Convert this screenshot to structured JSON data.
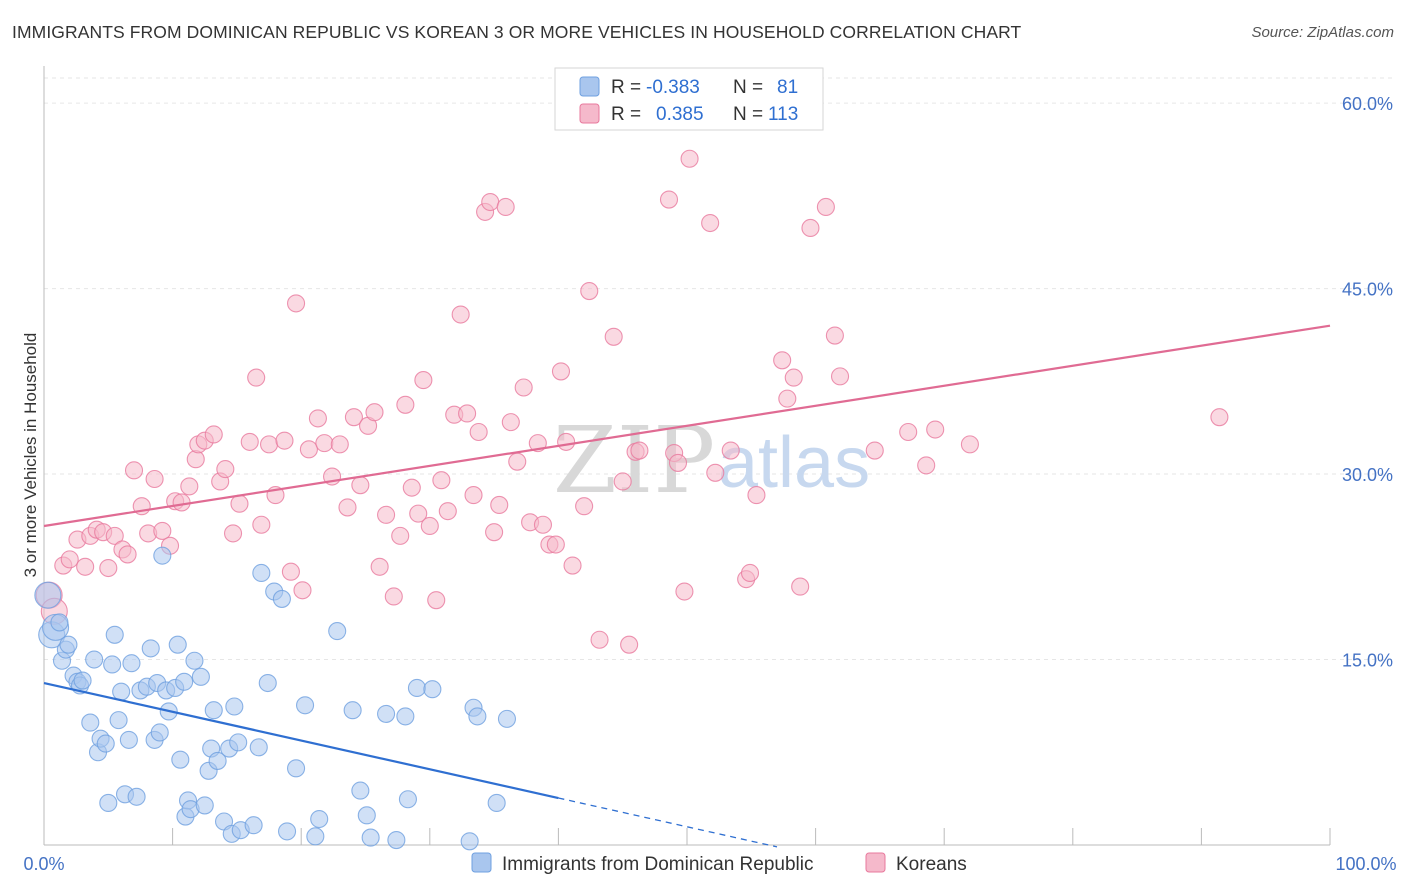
{
  "title": "IMMIGRANTS FROM DOMINICAN REPUBLIC VS KOREAN 3 OR MORE VEHICLES IN HOUSEHOLD CORRELATION CHART",
  "source": "Source: ZipAtlas.com",
  "watermark": {
    "zip": "ZIP",
    "atlas": "atlas"
  },
  "legend": {
    "rows": [
      {
        "r_label": "R =",
        "r_value": "-0.383",
        "n_label": "N =",
        "n_value": "81",
        "color": "#a9c6ee"
      },
      {
        "r_label": "R =",
        "r_value": "0.385",
        "n_label": "N =",
        "n_value": "113",
        "color": "#f5b9cb"
      }
    ]
  },
  "bottom_legend": [
    {
      "label": "Immigrants from Dominican Republic",
      "color": "#a9c6ee"
    },
    {
      "label": "Koreans",
      "color": "#f5b9cb"
    }
  ],
  "chart_data": {
    "type": "scatter",
    "title": "IMMIGRANTS FROM DOMINICAN REPUBLIC VS KOREAN 3 OR MORE VEHICLES IN HOUSEHOLD CORRELATION CHART",
    "xlabel": "",
    "ylabel": "3 or more Vehicles in Household",
    "xlim": [
      0,
      100
    ],
    "ylim": [
      0,
      63
    ],
    "x_tick_labels": [
      "0.0%",
      "100.0%"
    ],
    "y_ticks": [
      15,
      30,
      45,
      60
    ],
    "y_tick_labels": [
      "15.0%",
      "30.0%",
      "45.0%",
      "60.0%"
    ],
    "grid": true,
    "legend_position": "top-center",
    "series": [
      {
        "name": "Immigrants from Dominican Republic",
        "color": "#6fa0e0",
        "fill": "#a9c6ee",
        "trend": {
          "x0": 0,
          "y0": 13.1,
          "x1": 40,
          "y1": 3.8,
          "dash_to_x": 57
        },
        "points": [
          [
            0.3,
            20.2
          ],
          [
            0.6,
            17.0
          ],
          [
            0.9,
            17.6
          ],
          [
            1.2,
            18.0
          ],
          [
            1.4,
            14.9
          ],
          [
            1.7,
            15.8
          ],
          [
            1.9,
            16.2
          ],
          [
            2.3,
            13.7
          ],
          [
            2.6,
            13.2
          ],
          [
            2.8,
            12.9
          ],
          [
            3.0,
            13.3
          ],
          [
            3.6,
            9.9
          ],
          [
            3.9,
            15.0
          ],
          [
            4.2,
            7.5
          ],
          [
            4.4,
            8.6
          ],
          [
            4.8,
            8.2
          ],
          [
            5.0,
            3.4
          ],
          [
            5.3,
            14.6
          ],
          [
            5.5,
            17.0
          ],
          [
            5.8,
            10.1
          ],
          [
            6.0,
            12.4
          ],
          [
            6.3,
            4.1
          ],
          [
            6.6,
            8.5
          ],
          [
            6.8,
            14.7
          ],
          [
            7.2,
            3.9
          ],
          [
            7.5,
            12.5
          ],
          [
            8.0,
            12.8
          ],
          [
            8.3,
            15.9
          ],
          [
            8.6,
            8.5
          ],
          [
            8.8,
            13.1
          ],
          [
            9.0,
            9.1
          ],
          [
            9.2,
            23.4
          ],
          [
            9.5,
            12.5
          ],
          [
            9.7,
            10.8
          ],
          [
            10.2,
            12.7
          ],
          [
            10.4,
            16.2
          ],
          [
            10.6,
            6.9
          ],
          [
            10.9,
            13.2
          ],
          [
            11.0,
            2.3
          ],
          [
            11.2,
            3.6
          ],
          [
            11.4,
            2.9
          ],
          [
            11.7,
            14.9
          ],
          [
            12.2,
            13.6
          ],
          [
            12.5,
            3.2
          ],
          [
            12.8,
            6.0
          ],
          [
            13.0,
            7.8
          ],
          [
            13.2,
            10.9
          ],
          [
            13.5,
            6.8
          ],
          [
            14.0,
            1.9
          ],
          [
            14.4,
            7.8
          ],
          [
            14.6,
            0.9
          ],
          [
            14.8,
            11.2
          ],
          [
            15.1,
            8.3
          ],
          [
            15.3,
            1.2
          ],
          [
            16.3,
            1.6
          ],
          [
            16.7,
            7.9
          ],
          [
            16.9,
            22.0
          ],
          [
            17.4,
            13.1
          ],
          [
            17.9,
            20.5
          ],
          [
            18.5,
            19.9
          ],
          [
            18.9,
            1.1
          ],
          [
            19.6,
            6.2
          ],
          [
            20.3,
            11.3
          ],
          [
            21.1,
            0.7
          ],
          [
            21.4,
            2.1
          ],
          [
            22.8,
            17.3
          ],
          [
            24.0,
            10.9
          ],
          [
            24.6,
            4.4
          ],
          [
            25.1,
            2.4
          ],
          [
            25.4,
            0.6
          ],
          [
            26.6,
            10.6
          ],
          [
            27.4,
            0.4
          ],
          [
            28.1,
            10.4
          ],
          [
            28.3,
            3.7
          ],
          [
            29.0,
            12.7
          ],
          [
            30.2,
            12.6
          ],
          [
            33.1,
            0.3
          ],
          [
            33.4,
            11.1
          ],
          [
            33.7,
            10.4
          ],
          [
            35.2,
            3.4
          ],
          [
            36.0,
            10.2
          ]
        ]
      },
      {
        "name": "Koreans",
        "color": "#e8799d",
        "fill": "#f5b9cb",
        "trend": {
          "x0": 0,
          "y0": 25.8,
          "x1": 100,
          "y1": 42.0
        },
        "points": [
          [
            0.4,
            20.2
          ],
          [
            0.8,
            18.9
          ],
          [
            1.5,
            22.6
          ],
          [
            2.0,
            23.1
          ],
          [
            2.6,
            24.7
          ],
          [
            3.2,
            22.5
          ],
          [
            3.6,
            25.0
          ],
          [
            4.1,
            25.5
          ],
          [
            4.6,
            25.3
          ],
          [
            5.0,
            22.4
          ],
          [
            5.5,
            25.0
          ],
          [
            6.1,
            23.9
          ],
          [
            6.5,
            23.5
          ],
          [
            7.0,
            30.3
          ],
          [
            7.6,
            27.4
          ],
          [
            8.1,
            25.2
          ],
          [
            8.6,
            29.6
          ],
          [
            9.2,
            25.4
          ],
          [
            9.8,
            24.2
          ],
          [
            10.2,
            27.8
          ],
          [
            10.7,
            27.7
          ],
          [
            11.3,
            29.0
          ],
          [
            11.8,
            31.2
          ],
          [
            12.0,
            32.4
          ],
          [
            12.5,
            32.7
          ],
          [
            13.2,
            33.2
          ],
          [
            13.7,
            29.4
          ],
          [
            14.1,
            30.4
          ],
          [
            14.7,
            25.2
          ],
          [
            15.2,
            27.6
          ],
          [
            16.0,
            32.6
          ],
          [
            16.5,
            37.8
          ],
          [
            16.9,
            25.9
          ],
          [
            17.5,
            32.4
          ],
          [
            18.0,
            28.3
          ],
          [
            18.7,
            32.7
          ],
          [
            19.2,
            22.1
          ],
          [
            19.6,
            43.8
          ],
          [
            20.1,
            20.6
          ],
          [
            20.6,
            32.0
          ],
          [
            21.3,
            34.5
          ],
          [
            21.8,
            32.5
          ],
          [
            22.4,
            29.8
          ],
          [
            23.0,
            32.4
          ],
          [
            23.6,
            27.3
          ],
          [
            24.1,
            34.6
          ],
          [
            24.6,
            29.1
          ],
          [
            25.2,
            33.9
          ],
          [
            25.7,
            35.0
          ],
          [
            26.1,
            22.5
          ],
          [
            26.6,
            26.7
          ],
          [
            27.2,
            20.1
          ],
          [
            27.7,
            25.0
          ],
          [
            28.1,
            35.6
          ],
          [
            28.6,
            28.9
          ],
          [
            29.1,
            26.8
          ],
          [
            29.5,
            37.6
          ],
          [
            30.0,
            25.8
          ],
          [
            30.5,
            19.8
          ],
          [
            30.9,
            29.5
          ],
          [
            31.4,
            27.0
          ],
          [
            31.9,
            34.8
          ],
          [
            32.4,
            42.9
          ],
          [
            32.9,
            34.9
          ],
          [
            33.4,
            28.3
          ],
          [
            33.8,
            33.4
          ],
          [
            34.3,
            51.2
          ],
          [
            34.7,
            52.0
          ],
          [
            35.0,
            25.3
          ],
          [
            35.4,
            27.5
          ],
          [
            35.9,
            51.6
          ],
          [
            36.3,
            34.2
          ],
          [
            36.8,
            31.0
          ],
          [
            37.3,
            37.0
          ],
          [
            37.8,
            26.1
          ],
          [
            38.4,
            32.5
          ],
          [
            38.8,
            25.9
          ],
          [
            39.3,
            24.3
          ],
          [
            39.8,
            24.3
          ],
          [
            40.2,
            38.3
          ],
          [
            40.6,
            32.6
          ],
          [
            41.1,
            22.6
          ],
          [
            42.0,
            27.4
          ],
          [
            42.4,
            44.8
          ],
          [
            43.2,
            16.6
          ],
          [
            44.3,
            41.1
          ],
          [
            45.0,
            29.4
          ],
          [
            45.5,
            16.2
          ],
          [
            46.0,
            31.8
          ],
          [
            46.3,
            31.9
          ],
          [
            48.6,
            52.2
          ],
          [
            49.0,
            31.7
          ],
          [
            49.3,
            30.9
          ],
          [
            49.8,
            20.5
          ],
          [
            50.2,
            55.5
          ],
          [
            51.8,
            50.3
          ],
          [
            52.2,
            30.1
          ],
          [
            53.4,
            31.9
          ],
          [
            54.6,
            21.5
          ],
          [
            54.9,
            22.0
          ],
          [
            55.4,
            28.3
          ],
          [
            57.4,
            39.2
          ],
          [
            57.8,
            36.1
          ],
          [
            58.3,
            37.8
          ],
          [
            58.8,
            20.9
          ],
          [
            59.6,
            49.9
          ],
          [
            60.8,
            51.6
          ],
          [
            61.5,
            41.2
          ],
          [
            61.9,
            37.9
          ],
          [
            64.6,
            31.9
          ],
          [
            67.2,
            33.4
          ],
          [
            68.6,
            30.7
          ],
          [
            69.3,
            33.6
          ],
          [
            72.0,
            32.4
          ],
          [
            91.4,
            34.6
          ]
        ]
      }
    ]
  }
}
